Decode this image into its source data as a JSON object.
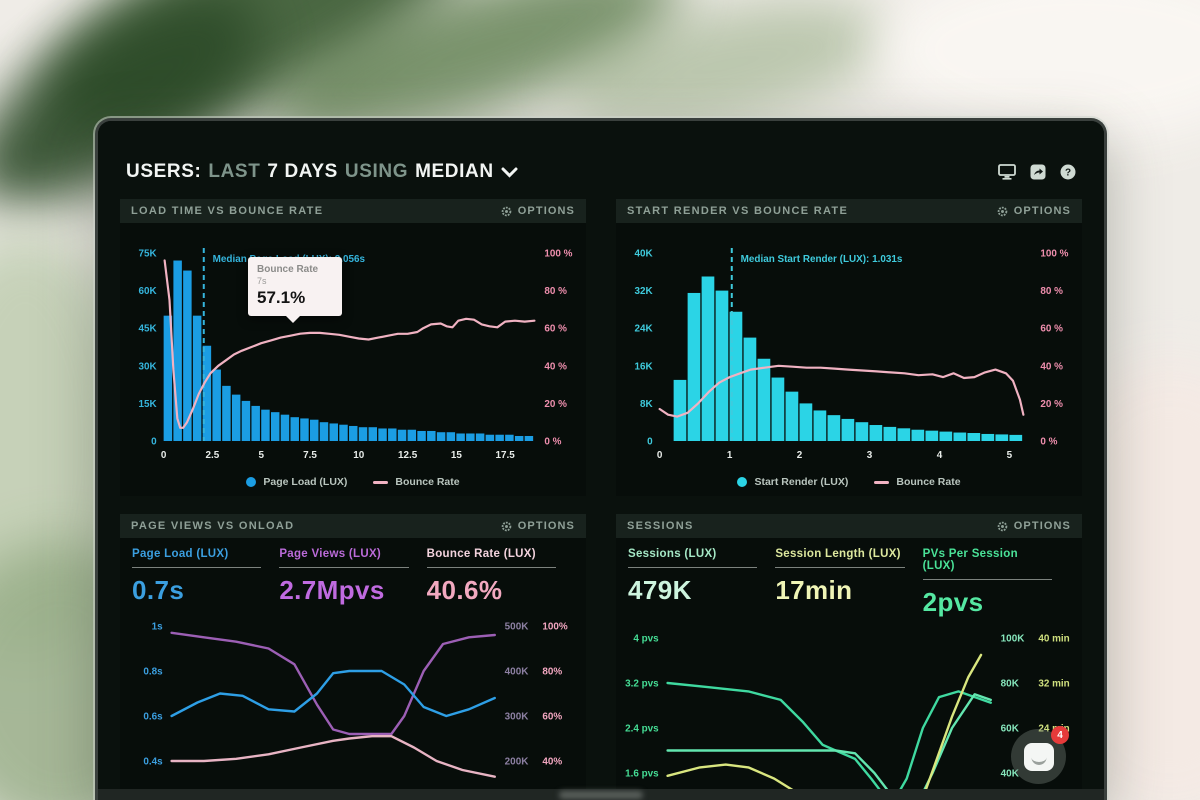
{
  "header": {
    "t1": "USERS:",
    "t2": "LAST",
    "t3": "7 DAYS",
    "t4": "USING",
    "t5": "MEDIAN",
    "icons": [
      "display-icon",
      "share-icon",
      "help-icon"
    ]
  },
  "colors": {
    "page_load_blue": "#1b9de3",
    "start_render_cyan": "#2bd4e6",
    "bounce_pink": "#f0b2c2",
    "axis_cyan": "#35b5dd",
    "axis_pink": "#ef8fae",
    "sessions_green": "#3fd9a0",
    "session_length_yellow": "#d9e67f",
    "pvs_mint": "#63e6b0",
    "panel_title_gray": "#8fa097",
    "badge_red": "#e63a3a"
  },
  "chat": {
    "badge": "4"
  },
  "panels": {
    "load_time": {
      "title": "LOAD TIME VS BOUNCE RATE",
      "options_label": "OPTIONS",
      "tooltip": {
        "title": "Bounce Rate",
        "sub": "7s",
        "value": "57.1%"
      },
      "legend": [
        "Page Load (LUX)",
        "Bounce Rate"
      ],
      "chart_data": {
        "type": "bar",
        "xmax": 19,
        "bars_x0": 0,
        "bar_w": 0.5,
        "bar_color": "#1b9de3",
        "line_color": "#f0b2c2",
        "x_ticks": [
          [
            0,
            "0"
          ],
          [
            2.5,
            "2.5"
          ],
          [
            5,
            "5"
          ],
          [
            7.5,
            "7.5"
          ],
          [
            10,
            "10"
          ],
          [
            12.5,
            "12.5"
          ],
          [
            15,
            "15"
          ],
          [
            17.5,
            "17.5"
          ]
        ],
        "y_left": {
          "ticks": [
            "75K",
            "60K",
            "45K",
            "30K",
            "15K",
            "0"
          ],
          "max": 75,
          "color": "#35b5dd"
        },
        "y_right": {
          "ticks": [
            "100 %",
            "80 %",
            "60 %",
            "40 %",
            "20 %",
            "0 %"
          ],
          "color": "#ef8fae"
        },
        "bars": [
          50,
          72,
          68,
          50,
          38,
          28.5,
          22,
          18.5,
          16,
          14,
          12.5,
          11.5,
          10.5,
          9.5,
          9,
          8.5,
          7.5,
          7,
          6.5,
          6,
          5.5,
          5.5,
          5,
          5,
          4.5,
          4.5,
          4,
          4,
          3.5,
          3.5,
          3,
          3,
          3,
          2.5,
          2.5,
          2.5,
          2,
          2
        ],
        "median": {
          "x": 2.056,
          "label": "Median Page Load (LUX): 2.056s"
        },
        "line": [
          [
            0.05,
            96
          ],
          [
            0.3,
            75
          ],
          [
            0.5,
            38
          ],
          [
            0.7,
            12
          ],
          [
            0.85,
            7
          ],
          [
            1.0,
            7
          ],
          [
            1.2,
            10
          ],
          [
            1.5,
            17
          ],
          [
            1.8,
            25
          ],
          [
            2.1,
            31
          ],
          [
            2.4,
            36
          ],
          [
            2.8,
            40
          ],
          [
            3.2,
            43
          ],
          [
            3.6,
            46
          ],
          [
            4.0,
            48
          ],
          [
            4.5,
            50
          ],
          [
            5.0,
            52
          ],
          [
            5.5,
            53.5
          ],
          [
            6.0,
            55
          ],
          [
            6.5,
            56
          ],
          [
            7.0,
            57.1
          ],
          [
            7.5,
            57.5
          ],
          [
            8.0,
            57.5
          ],
          [
            8.5,
            57
          ],
          [
            9.0,
            56.5
          ],
          [
            9.5,
            55.5
          ],
          [
            10.0,
            54.5
          ],
          [
            10.5,
            54
          ],
          [
            11.0,
            55
          ],
          [
            11.5,
            56
          ],
          [
            12.0,
            57
          ],
          [
            12.5,
            57
          ],
          [
            13.0,
            58
          ],
          [
            13.3,
            60
          ],
          [
            13.7,
            62
          ],
          [
            14.2,
            62.5
          ],
          [
            14.5,
            61
          ],
          [
            14.8,
            60.5
          ],
          [
            15.1,
            64
          ],
          [
            15.5,
            65
          ],
          [
            15.9,
            64.5
          ],
          [
            16.3,
            62
          ],
          [
            16.7,
            61
          ],
          [
            17.1,
            60.5
          ],
          [
            17.5,
            63.5
          ],
          [
            18.0,
            64
          ],
          [
            18.5,
            63.5
          ],
          [
            19.0,
            64
          ]
        ]
      }
    },
    "start_render": {
      "title": "START RENDER VS BOUNCE RATE",
      "options_label": "OPTIONS",
      "legend": [
        "Start Render (LUX)",
        "Bounce Rate"
      ],
      "chart_data": {
        "type": "bar",
        "xmax": 5.3,
        "bars_x0": 0.2,
        "bar_w": 0.2,
        "bar_color": "#2bd4e6",
        "line_color": "#f0b2c2",
        "x_ticks": [
          [
            0,
            "0"
          ],
          [
            1,
            "1"
          ],
          [
            2,
            "2"
          ],
          [
            3,
            "3"
          ],
          [
            4,
            "4"
          ],
          [
            5,
            "5"
          ]
        ],
        "y_left": {
          "ticks": [
            "40K",
            "32K",
            "24K",
            "16K",
            "8K",
            "0"
          ],
          "max": 40,
          "color": "#3fcbdd"
        },
        "y_right": {
          "ticks": [
            "100 %",
            "80 %",
            "60 %",
            "40 %",
            "20 %",
            "0 %"
          ],
          "color": "#ef8fae"
        },
        "bars": [
          13,
          31.5,
          35,
          32,
          27.5,
          22,
          17.5,
          13.5,
          10.5,
          8,
          6.5,
          5.5,
          4.7,
          4,
          3.4,
          3,
          2.7,
          2.4,
          2.2,
          2,
          1.8,
          1.7,
          1.5,
          1.4,
          1.3
        ],
        "median": {
          "x": 1.031,
          "label": "Median Start Render (LUX): 1.031s"
        },
        "line": [
          [
            0,
            17
          ],
          [
            0.12,
            14
          ],
          [
            0.25,
            13
          ],
          [
            0.4,
            15
          ],
          [
            0.55,
            20
          ],
          [
            0.7,
            26
          ],
          [
            0.85,
            31
          ],
          [
            1.0,
            34
          ],
          [
            1.15,
            36
          ],
          [
            1.3,
            38
          ],
          [
            1.5,
            39
          ],
          [
            1.7,
            40
          ],
          [
            1.9,
            39.5
          ],
          [
            2.1,
            39
          ],
          [
            2.3,
            39
          ],
          [
            2.5,
            38.5
          ],
          [
            2.7,
            38
          ],
          [
            2.9,
            37.5
          ],
          [
            3.1,
            37
          ],
          [
            3.3,
            36.5
          ],
          [
            3.5,
            36
          ],
          [
            3.7,
            35
          ],
          [
            3.9,
            35.5
          ],
          [
            4.05,
            34
          ],
          [
            4.2,
            36
          ],
          [
            4.35,
            33.5
          ],
          [
            4.5,
            34
          ],
          [
            4.65,
            36.5
          ],
          [
            4.8,
            38
          ],
          [
            4.95,
            36
          ],
          [
            5.05,
            32
          ],
          [
            5.15,
            22
          ],
          [
            5.2,
            14
          ]
        ]
      }
    },
    "page_views": {
      "title": "PAGE VIEWS VS ONLOAD",
      "options_label": "OPTIONS",
      "metrics": [
        {
          "label": "Page Load (LUX)",
          "value": "0.7s"
        },
        {
          "label": "Page Views (LUX)",
          "value": "2.7Mpvs"
        },
        {
          "label": "Bounce Rate (LUX)",
          "value": "40.6%"
        }
      ],
      "chart_data": {
        "type": "line",
        "y_axis_top": 1.0,
        "y_axis_step": 0.2,
        "y_left": {
          "ticks": [
            "1s",
            "0.8s",
            "0.6s",
            "0.4s"
          ],
          "color": "#3b9fe0"
        },
        "y_right": {
          "ticks": [
            [
              "500K",
              "100%"
            ],
            [
              "400K",
              "80%"
            ],
            [
              "300K",
              "60%"
            ],
            [
              "200K",
              "40%"
            ]
          ],
          "color1": "#8d80a3",
          "color2": "#f2a6c0"
        },
        "series": [
          {
            "name": "Page Views",
            "color": "#9c5fb5",
            "points": [
              [
                0,
                0.97
              ],
              [
                0.1,
                0.95
              ],
              [
                0.2,
                0.93
              ],
              [
                0.3,
                0.9
              ],
              [
                0.38,
                0.83
              ],
              [
                0.45,
                0.65
              ],
              [
                0.5,
                0.54
              ],
              [
                0.55,
                0.52
              ],
              [
                0.62,
                0.52
              ],
              [
                0.68,
                0.52
              ],
              [
                0.72,
                0.6
              ],
              [
                0.78,
                0.8
              ],
              [
                0.84,
                0.92
              ],
              [
                0.92,
                0.95
              ],
              [
                1,
                0.96
              ]
            ]
          },
          {
            "name": "Page Load",
            "color": "#2e9fe6",
            "points": [
              [
                0,
                0.6
              ],
              [
                0.08,
                0.66
              ],
              [
                0.15,
                0.7
              ],
              [
                0.22,
                0.69
              ],
              [
                0.3,
                0.63
              ],
              [
                0.38,
                0.62
              ],
              [
                0.45,
                0.7
              ],
              [
                0.5,
                0.79
              ],
              [
                0.55,
                0.8
              ],
              [
                0.65,
                0.8
              ],
              [
                0.72,
                0.74
              ],
              [
                0.78,
                0.64
              ],
              [
                0.85,
                0.6
              ],
              [
                0.92,
                0.63
              ],
              [
                1,
                0.68
              ]
            ]
          },
          {
            "name": "Bounce Rate",
            "color": "#e8b4c4",
            "points": [
              [
                0,
                0.4
              ],
              [
                0.1,
                0.4
              ],
              [
                0.2,
                0.41
              ],
              [
                0.3,
                0.43
              ],
              [
                0.4,
                0.46
              ],
              [
                0.5,
                0.49
              ],
              [
                0.55,
                0.5
              ],
              [
                0.62,
                0.51
              ],
              [
                0.68,
                0.51
              ],
              [
                0.75,
                0.46
              ],
              [
                0.82,
                0.4
              ],
              [
                0.9,
                0.36
              ],
              [
                1,
                0.33
              ]
            ]
          }
        ]
      }
    },
    "sessions": {
      "title": "SESSIONS",
      "options_label": "OPTIONS",
      "metrics": [
        {
          "label": "Sessions (LUX)",
          "value": "479K"
        },
        {
          "label": "Session Length (LUX)",
          "value": "17min"
        },
        {
          "label": "PVs Per Session (LUX)",
          "value": "2pvs"
        }
      ],
      "chart_data": {
        "type": "line",
        "y_axis_top": 4.0,
        "y_axis_step": 0.8,
        "y_left": {
          "ticks": [
            "4 pvs",
            "3.2 pvs",
            "2.4 pvs",
            "1.6 pvs"
          ],
          "color": "#45dd95"
        },
        "y_right": {
          "ticks": [
            [
              "100K",
              "40 min"
            ],
            [
              "80K",
              "32 min"
            ],
            [
              "60K",
              "24 min"
            ],
            [
              "40K",
              ""
            ]
          ],
          "color1": "#86e6bc",
          "color2": "#cfe07e"
        },
        "series": [
          {
            "name": "Sessions",
            "color": "#3fd9a0",
            "points": [
              [
                0,
                3.2
              ],
              [
                0.12,
                3.13
              ],
              [
                0.25,
                3.05
              ],
              [
                0.35,
                2.9
              ],
              [
                0.42,
                2.5
              ],
              [
                0.48,
                2.1
              ],
              [
                0.52,
                2.0
              ],
              [
                0.58,
                1.85
              ],
              [
                0.63,
                1.5
              ],
              [
                0.67,
                1.2
              ],
              [
                0.7,
                1.1
              ],
              [
                0.74,
                1.5
              ],
              [
                0.79,
                2.4
              ],
              [
                0.84,
                2.95
              ],
              [
                0.9,
                3.05
              ],
              [
                1,
                2.85
              ]
            ]
          },
          {
            "name": "PVs Per Session",
            "color": "#63e6b0",
            "points": [
              [
                0,
                2.0
              ],
              [
                0.45,
                2.0
              ],
              [
                0.52,
                2.0
              ],
              [
                0.58,
                1.95
              ],
              [
                0.64,
                1.6
              ],
              [
                0.7,
                1.15
              ],
              [
                0.76,
                0.9
              ],
              [
                0.82,
                1.6
              ],
              [
                0.88,
                2.4
              ],
              [
                0.95,
                3.0
              ],
              [
                1,
                2.9
              ]
            ]
          },
          {
            "name": "Session Length",
            "color": "#d9e67f",
            "points": [
              [
                0,
                1.55
              ],
              [
                0.1,
                1.7
              ],
              [
                0.18,
                1.75
              ],
              [
                0.25,
                1.7
              ],
              [
                0.33,
                1.5
              ],
              [
                0.4,
                1.25
              ],
              [
                0.46,
                1.0
              ],
              [
                0.52,
                0.8
              ],
              [
                0.6,
                0.6
              ],
              [
                0.68,
                0.5
              ],
              [
                0.74,
                0.6
              ],
              [
                0.78,
                1.0
              ],
              [
                0.83,
                1.8
              ],
              [
                0.88,
                2.6
              ],
              [
                0.93,
                3.3
              ],
              [
                0.97,
                3.7
              ]
            ]
          }
        ]
      }
    }
  }
}
